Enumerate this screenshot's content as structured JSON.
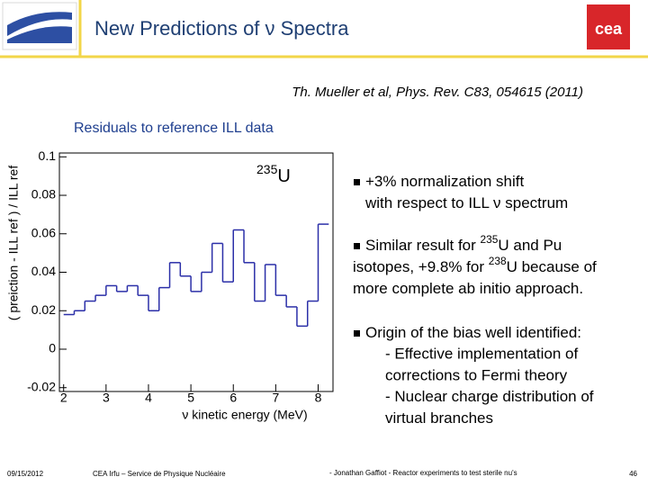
{
  "header": {
    "title": "New Predictions of ν Spectra",
    "logo": "cea"
  },
  "reference": "Th. Mueller et al, Phys. Rev. C83, 054615 (2011)",
  "section_title": "Residuals to reference ILL data",
  "chart_data": {
    "type": "histogram",
    "xlabel": "ν kinetic energy (MeV)",
    "ylabel": "( preiction - ILL ref ) / ILL ref",
    "annotation": [
      {
        "sup": "235"
      },
      {
        "text": "U"
      }
    ],
    "color": "#2b2fa8",
    "bins": [
      2,
      2.25,
      2.5,
      2.75,
      3,
      3.25,
      3.5,
      3.75,
      4,
      4.25,
      4.5,
      4.75,
      5,
      5.25,
      5.5,
      5.75,
      6,
      6.25,
      6.5,
      6.75,
      7,
      7.25,
      7.5,
      7.75,
      8,
      8.25
    ],
    "values": [
      0.018,
      0.02,
      0.025,
      0.028,
      0.033,
      0.03,
      0.033,
      0.028,
      0.02,
      0.032,
      0.045,
      0.038,
      0.03,
      0.04,
      0.055,
      0.035,
      0.062,
      0.045,
      0.025,
      0.044,
      0.028,
      0.022,
      0.012,
      0.025,
      0.065
    ],
    "xlim": [
      1.9,
      8.35
    ],
    "ylim": [
      -0.022,
      0.102
    ],
    "xticks": [
      2,
      3,
      4,
      5,
      6,
      7,
      8
    ],
    "yticks": [
      -0.02,
      0,
      0.02,
      0.04,
      0.06,
      0.08,
      0.1
    ]
  },
  "bullets": [
    {
      "lines": [
        [
          {
            "text": "+3% normalization shift"
          }
        ],
        [
          {
            "text": "with respect to ILL ν spectrum"
          }
        ]
      ]
    },
    {
      "lines": [
        [
          {
            "text": "Similar result for "
          },
          {
            "sup": "235"
          },
          {
            "text": "U and Pu"
          }
        ],
        [
          {
            "text": "isotopes, +9.8% for "
          },
          {
            "sup": "238"
          },
          {
            "text": "U because of"
          }
        ],
        [
          {
            "text": "more complete ab initio approach."
          }
        ]
      ]
    },
    {
      "lines": [
        [
          {
            "text": "Origin of the bias well identified:"
          }
        ],
        [
          {
            "text": "- Effective implementation of"
          }
        ],
        [
          {
            "text": "corrections to Fermi theory"
          }
        ],
        [
          {
            "text": "- Nuclear charge distribution of"
          }
        ],
        [
          {
            "text": "virtual branches"
          }
        ]
      ]
    }
  ],
  "footer": {
    "date": "09/15/2012",
    "org": "CEA Irfu – Service de Physique Nucléaire",
    "talk": "- Jonathan Gaffiot - Reactor experiments to test sterile nu's",
    "page": "46"
  }
}
